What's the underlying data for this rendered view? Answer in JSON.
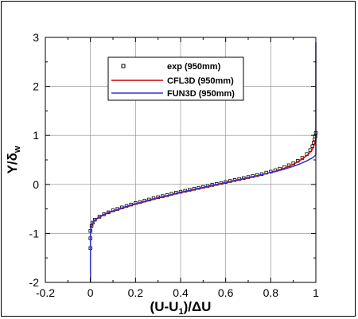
{
  "chart_data": {
    "type": "line",
    "title": "",
    "xlabel": {
      "base": "(U-U",
      "sub": "1",
      "tail": ")/ΔU"
    },
    "ylabel": {
      "base": "Y/δ",
      "sub": "w"
    },
    "xlim": [
      -0.2,
      1.0
    ],
    "ylim": [
      -2.0,
      3.0
    ],
    "xticks": [
      "-0.2",
      "0",
      "0.2",
      "0.4",
      "0.6",
      "0.8",
      "1"
    ],
    "yticks": [
      "-2",
      "-1",
      "0",
      "1",
      "2",
      "3"
    ],
    "grid": true,
    "legend_position": "top-center",
    "series": [
      {
        "name": "exp (950mm)",
        "kind": "markers",
        "color": "#000000",
        "x": [
          0.0,
          0.0,
          0.0,
          0.005,
          0.01,
          0.02,
          0.04,
          0.06,
          0.08,
          0.1,
          0.12,
          0.14,
          0.16,
          0.18,
          0.2,
          0.22,
          0.24,
          0.26,
          0.28,
          0.3,
          0.32,
          0.34,
          0.36,
          0.38,
          0.4,
          0.42,
          0.44,
          0.46,
          0.48,
          0.5,
          0.52,
          0.54,
          0.56,
          0.58,
          0.6,
          0.62,
          0.64,
          0.66,
          0.68,
          0.7,
          0.72,
          0.74,
          0.76,
          0.78,
          0.8,
          0.82,
          0.84,
          0.86,
          0.88,
          0.9,
          0.92,
          0.94,
          0.96,
          0.975,
          0.985,
          0.99,
          0.995,
          0.998,
          1.0
        ],
        "y": [
          -1.3,
          -1.1,
          -0.95,
          -0.85,
          -0.78,
          -0.72,
          -0.66,
          -0.61,
          -0.57,
          -0.53,
          -0.5,
          -0.47,
          -0.44,
          -0.41,
          -0.38,
          -0.36,
          -0.33,
          -0.31,
          -0.28,
          -0.26,
          -0.24,
          -0.22,
          -0.19,
          -0.17,
          -0.15,
          -0.13,
          -0.11,
          -0.09,
          -0.07,
          -0.05,
          -0.03,
          -0.01,
          0.01,
          0.03,
          0.05,
          0.07,
          0.09,
          0.11,
          0.13,
          0.15,
          0.17,
          0.19,
          0.21,
          0.24,
          0.26,
          0.29,
          0.32,
          0.35,
          0.39,
          0.43,
          0.48,
          0.54,
          0.62,
          0.7,
          0.78,
          0.85,
          0.92,
          0.98,
          1.05
        ]
      },
      {
        "name": "CFL3D (950mm)",
        "kind": "line",
        "color": "#cc0000",
        "x": [
          0.0,
          0.0,
          0.002,
          0.006,
          0.012,
          0.02,
          0.04,
          0.06,
          0.08,
          0.1,
          0.14,
          0.18,
          0.22,
          0.26,
          0.3,
          0.34,
          0.38,
          0.42,
          0.46,
          0.5,
          0.54,
          0.58,
          0.62,
          0.66,
          0.7,
          0.74,
          0.78,
          0.82,
          0.86,
          0.9,
          0.93,
          0.96,
          0.98,
          0.99,
          0.996,
          1.0,
          1.0
        ],
        "y": [
          -1.35,
          -1.05,
          -0.92,
          -0.84,
          -0.78,
          -0.73,
          -0.67,
          -0.62,
          -0.58,
          -0.55,
          -0.49,
          -0.43,
          -0.38,
          -0.33,
          -0.28,
          -0.24,
          -0.19,
          -0.15,
          -0.11,
          -0.07,
          -0.03,
          0.01,
          0.05,
          0.09,
          0.13,
          0.17,
          0.22,
          0.27,
          0.33,
          0.41,
          0.49,
          0.59,
          0.68,
          0.77,
          0.86,
          0.95,
          1.02
        ]
      },
      {
        "name": "FUN3D (950mm)",
        "kind": "line",
        "color": "#3333cc",
        "x": [
          0.0,
          0.0,
          0.0,
          0.002,
          0.006,
          0.012,
          0.02,
          0.04,
          0.06,
          0.08,
          0.1,
          0.14,
          0.18,
          0.22,
          0.26,
          0.3,
          0.34,
          0.38,
          0.42,
          0.46,
          0.5,
          0.54,
          0.58,
          0.62,
          0.66,
          0.7,
          0.74,
          0.78,
          0.82,
          0.86,
          0.9,
          0.93,
          0.96,
          0.98,
          0.99,
          1.0,
          1.0,
          1.0
        ],
        "y": [
          -2.0,
          -1.3,
          -1.0,
          -0.9,
          -0.82,
          -0.77,
          -0.72,
          -0.66,
          -0.61,
          -0.57,
          -0.54,
          -0.48,
          -0.42,
          -0.37,
          -0.32,
          -0.27,
          -0.23,
          -0.18,
          -0.14,
          -0.1,
          -0.06,
          -0.02,
          0.02,
          0.06,
          0.1,
          0.14,
          0.18,
          0.22,
          0.26,
          0.31,
          0.37,
          0.42,
          0.48,
          0.53,
          0.56,
          0.6,
          1.5,
          2.9
        ]
      }
    ]
  }
}
